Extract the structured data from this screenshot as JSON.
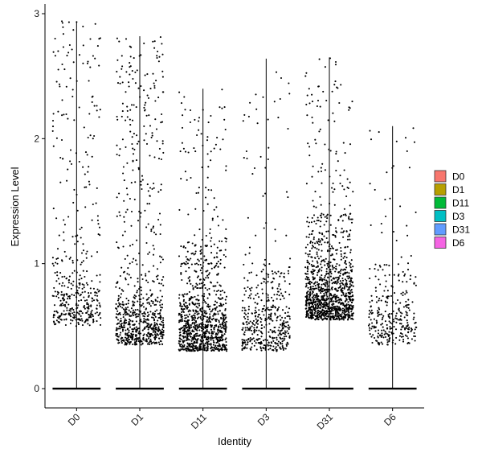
{
  "chart_data": {
    "type": "violin-jitter",
    "xlabel": "Identity",
    "ylabel": "Expression Level",
    "ylim": [
      -0.15,
      3.08
    ],
    "yticks": [
      0,
      1,
      2,
      3
    ],
    "categories": [
      "D0",
      "D1",
      "D11",
      "D3",
      "D31",
      "D6"
    ],
    "series": [
      {
        "name": "D0",
        "color": "#F8766D",
        "max": 2.94,
        "n_nonzero": 420,
        "mode_low": 0.5,
        "mode_high": 2.4
      },
      {
        "name": "D1",
        "color": "#B79F00",
        "max": 2.82,
        "n_nonzero": 760,
        "mode_low": 0.35,
        "mode_high": 2.3
      },
      {
        "name": "D11",
        "color": "#00BA38",
        "max": 2.4,
        "n_nonzero": 980,
        "mode_low": 0.3,
        "mode_high": 1.2
      },
      {
        "name": "D3",
        "color": "#00BFC4",
        "max": 2.64,
        "n_nonzero": 460,
        "mode_low": 0.3,
        "mode_high": 1.0
      },
      {
        "name": "D31",
        "color": "#619CFF",
        "max": 2.65,
        "n_nonzero": 1150,
        "mode_low": 0.55,
        "mode_high": 1.4
      },
      {
        "name": "D6",
        "color": "#F564E3",
        "max": 2.1,
        "n_nonzero": 300,
        "mode_low": 0.35,
        "mode_high": 1.0
      }
    ],
    "legend": {
      "position": "right",
      "entries": [
        "D0",
        "D1",
        "D11",
        "D3",
        "D31",
        "D6"
      ]
    },
    "grid": false
  }
}
